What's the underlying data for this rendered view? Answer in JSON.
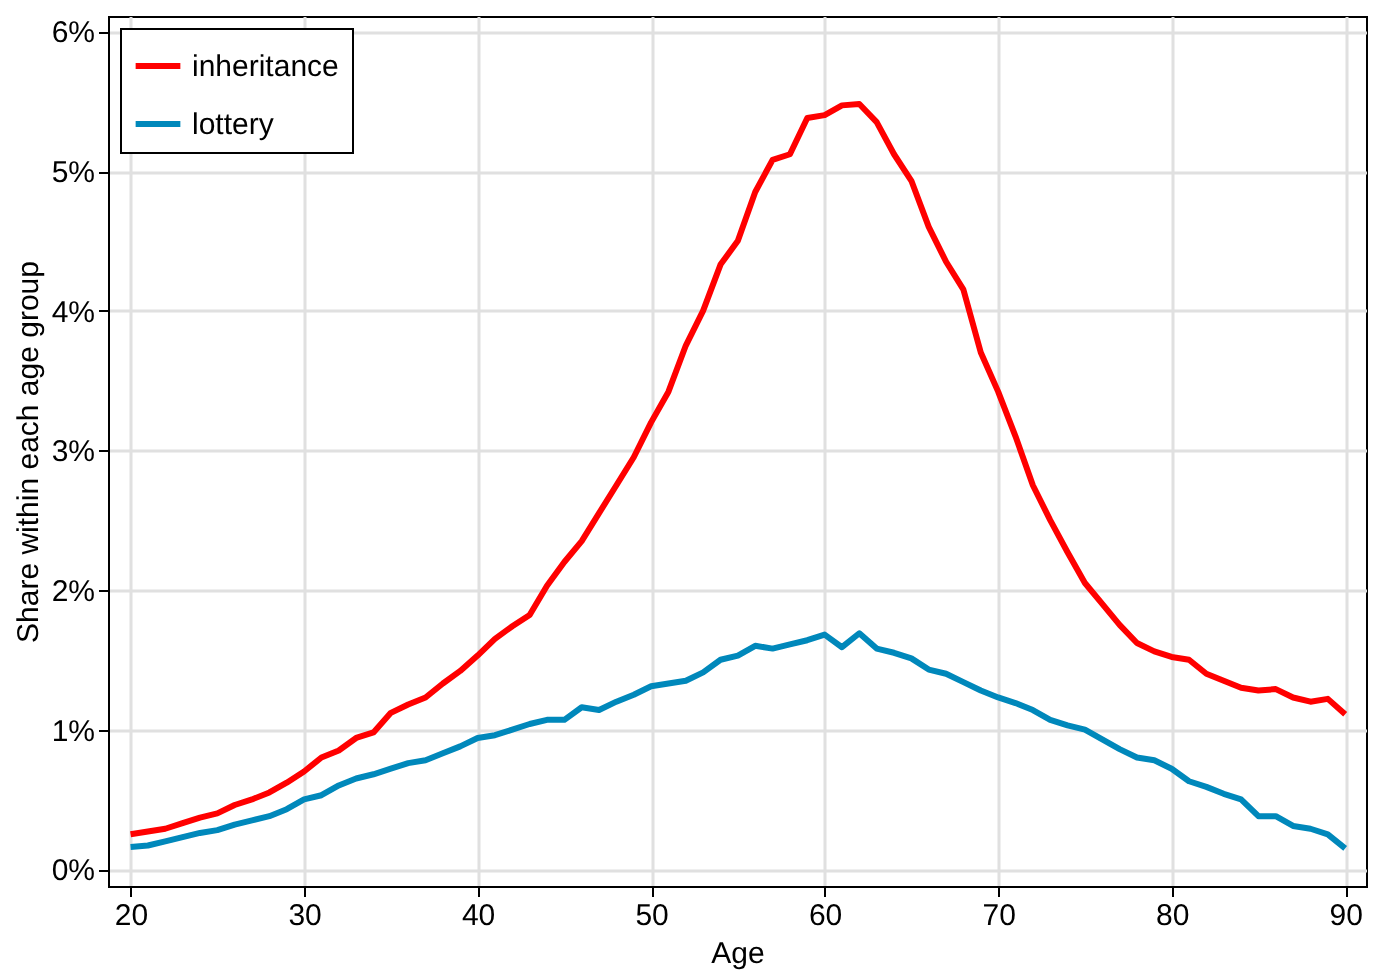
{
  "chart_data": {
    "type": "line",
    "xlabel": "Age",
    "ylabel": "Share within each age group",
    "x": [
      20,
      21,
      22,
      23,
      24,
      25,
      26,
      27,
      28,
      29,
      30,
      31,
      32,
      33,
      34,
      35,
      36,
      37,
      38,
      39,
      40,
      41,
      42,
      43,
      44,
      45,
      46,
      47,
      48,
      49,
      50,
      51,
      52,
      53,
      54,
      55,
      56,
      57,
      58,
      59,
      60,
      61,
      62,
      63,
      64,
      65,
      66,
      67,
      68,
      69,
      70,
      71,
      72,
      73,
      74,
      75,
      76,
      77,
      78,
      79,
      80,
      81,
      82,
      83,
      84,
      85,
      86,
      87,
      88,
      89,
      90
    ],
    "series": [
      {
        "name": "inheritance",
        "color": "#ff0000",
        "values": [
          0.25,
          0.27,
          0.29,
          0.33,
          0.37,
          0.4,
          0.46,
          0.5,
          0.55,
          0.62,
          0.7,
          0.8,
          0.85,
          0.94,
          0.98,
          1.12,
          1.18,
          1.23,
          1.33,
          1.42,
          1.53,
          1.65,
          1.74,
          1.82,
          2.03,
          2.2,
          2.35,
          2.55,
          2.75,
          2.95,
          3.2,
          3.42,
          3.75,
          4.0,
          4.33,
          4.5,
          4.85,
          5.08,
          5.12,
          5.38,
          5.4,
          5.47,
          5.48,
          5.35,
          5.12,
          4.93,
          4.6,
          4.35,
          4.15,
          3.7,
          3.42,
          3.1,
          2.75,
          2.5,
          2.27,
          2.05,
          1.9,
          1.75,
          1.62,
          1.56,
          1.52,
          1.5,
          1.4,
          1.35,
          1.3,
          1.28,
          1.29,
          1.23,
          1.2,
          1.22,
          1.11
        ]
      },
      {
        "name": "lottery",
        "color": "#0088bb",
        "values": [
          0.16,
          0.17,
          0.2,
          0.23,
          0.26,
          0.28,
          0.32,
          0.35,
          0.38,
          0.43,
          0.5,
          0.53,
          0.6,
          0.65,
          0.68,
          0.72,
          0.76,
          0.78,
          0.83,
          0.88,
          0.94,
          0.96,
          1.0,
          1.04,
          1.07,
          1.07,
          1.16,
          1.14,
          1.2,
          1.25,
          1.31,
          1.33,
          1.35,
          1.41,
          1.5,
          1.53,
          1.6,
          1.58,
          1.61,
          1.64,
          1.68,
          1.59,
          1.69,
          1.58,
          1.55,
          1.51,
          1.43,
          1.4,
          1.34,
          1.28,
          1.23,
          1.19,
          1.14,
          1.07,
          1.03,
          1.0,
          0.93,
          0.86,
          0.8,
          0.78,
          0.72,
          0.63,
          0.59,
          0.54,
          0.5,
          0.38,
          0.38,
          0.31,
          0.29,
          0.25,
          0.15
        ]
      }
    ],
    "xlim": [
      18.7,
      91.2
    ],
    "xticks": [
      20,
      30,
      40,
      50,
      60,
      70,
      80,
      90
    ],
    "ylim": [
      -0.12,
      6.11
    ],
    "yticks": [
      {
        "value": 0,
        "label": "0%"
      },
      {
        "value": 1,
        "label": "1%"
      },
      {
        "value": 2,
        "label": "2%"
      },
      {
        "value": 3,
        "label": "3%"
      },
      {
        "value": 4,
        "label": "4%"
      },
      {
        "value": 5,
        "label": "5%"
      },
      {
        "value": 6,
        "label": "6%"
      }
    ],
    "grid": true,
    "legend": "top left",
    "line_style": "solid",
    "marker": "none"
  }
}
